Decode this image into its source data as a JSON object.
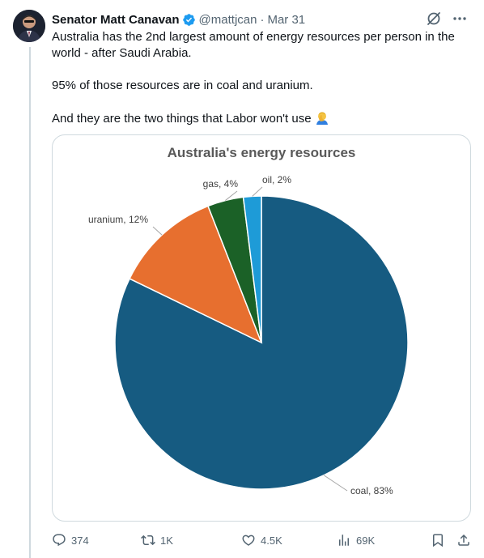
{
  "author": {
    "display_name": "Senator Matt Canavan",
    "handle": "@mattjcan",
    "separator": "·",
    "date": "Mar 31"
  },
  "tweet": {
    "line1": "Australia has the 2nd largest amount of energy resources per person in the world - after Saudi Arabia.",
    "line2": "95% of those resources are in coal and uranium.",
    "line3": "And they are the two things that Labor won't use"
  },
  "icons": {
    "avatar": "avatar-photo",
    "verified": "verified-badge-icon",
    "grok": "grok-icon",
    "more": "more-icon",
    "emoji": "man-facepalming-emoji",
    "reply": "reply-icon",
    "retweet": "retweet-icon",
    "like": "heart-icon",
    "views": "views-icon",
    "bookmark": "bookmark-icon",
    "share": "share-icon"
  },
  "colors": {
    "verified": "#1d9bf0",
    "text": "#0f1419",
    "muted": "#536471",
    "border": "#cfd9de"
  },
  "chart_data": {
    "type": "pie",
    "title": "Australia's energy resources",
    "slices": [
      {
        "label": "coal, 83%",
        "name": "coal",
        "value": 83,
        "color": "#165b81"
      },
      {
        "label": "uranium, 12%",
        "name": "uranium",
        "value": 12,
        "color": "#e76f2f"
      },
      {
        "label": "gas, 4%",
        "name": "gas",
        "value": 4,
        "color": "#1b6127"
      },
      {
        "label": "oil, 2%",
        "name": "oil",
        "value": 2,
        "color": "#1e9bd7"
      }
    ],
    "start": "top, clockwise",
    "legend": "none"
  },
  "stats": {
    "replies": "374",
    "retweets": "1K",
    "likes": "4.5K",
    "views": "69K"
  }
}
